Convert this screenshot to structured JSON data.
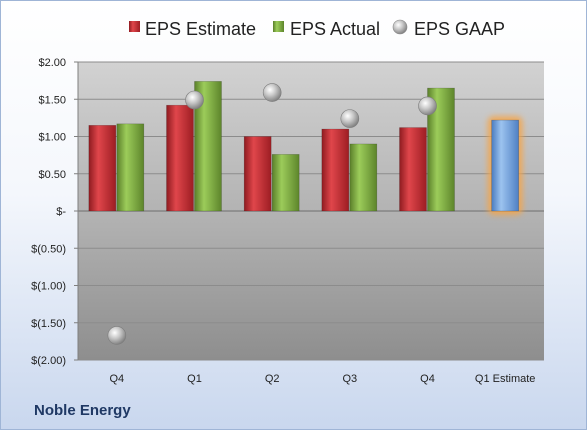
{
  "chart_data": {
    "type": "bar",
    "categories": [
      "Q4",
      "Q1",
      "Q2",
      "Q3",
      "Q4",
      "Q1 Estimate"
    ],
    "series": [
      {
        "name": "EPS Estimate",
        "values": [
          1.15,
          1.42,
          1.0,
          1.1,
          1.12,
          null
        ]
      },
      {
        "name": "EPS Actual",
        "values": [
          1.17,
          1.74,
          0.76,
          0.9,
          1.65,
          null
        ]
      },
      {
        "name": "EPS GAAP",
        "values": [
          -1.67,
          1.49,
          1.59,
          1.24,
          1.41,
          null
        ]
      },
      {
        "name": "",
        "values": [
          null,
          null,
          null,
          null,
          null,
          1.22
        ]
      }
    ],
    "series_types": [
      "bar",
      "bar",
      "marker",
      "bar"
    ],
    "y_tick_values": [
      2.0,
      1.5,
      1.0,
      0.5,
      0.0,
      -0.5,
      -1.0,
      -1.5,
      -2.0
    ],
    "y_tick_labels": [
      "$2.00",
      "$1.50",
      "$1.00",
      "$0.50",
      "$-",
      "$(0.50)",
      "$(1.00)",
      "$(1.50)",
      "$(2.00)"
    ],
    "ylim": [
      -2.0,
      2.0
    ],
    "grid": true,
    "legend_position": "top",
    "colors": {
      "estimate": "#c0262d",
      "actual": "#7aa93c",
      "gaap": "#b5b5b5",
      "next_estimate": "#6f9fd8",
      "highlight": "#f5a54a"
    }
  },
  "footer": {
    "company": "Noble Energy"
  }
}
